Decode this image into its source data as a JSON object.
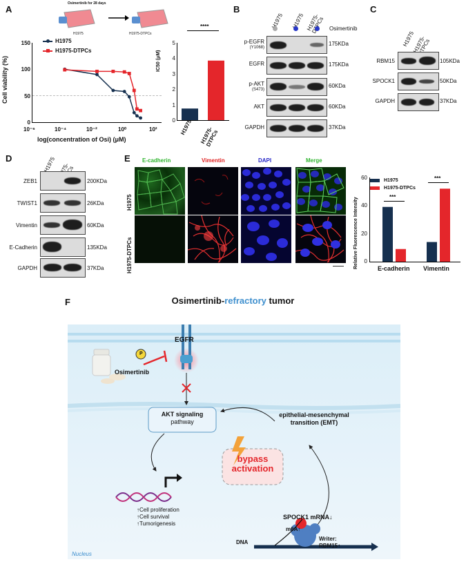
{
  "panels": {
    "A": "A",
    "B": "B",
    "C": "C",
    "D": "D",
    "E": "E",
    "F": "F"
  },
  "panelA": {
    "header": "Osimertinib for 28 days",
    "flask_left": "H1975",
    "flask_right": "H1975-DTPCs",
    "curve_legend": [
      "H1975",
      "H1975-DTPCs"
    ],
    "curve_ylabel": "Cell viability (%)",
    "curve_xlabel": "log(concentration of Osi) (μM)",
    "curve_yticks": [
      "0",
      "50",
      "100",
      "150"
    ],
    "curve_xticks": [
      "10⁻⁶",
      "10⁻⁴",
      "10⁻²",
      "10⁰",
      "10²"
    ],
    "bar_ylabel": "IC50 (μM)",
    "bar_yticks": [
      "0",
      "1",
      "2",
      "3",
      "4",
      "5"
    ],
    "bar_categories": [
      "H1975",
      "H1975-DTPCs"
    ],
    "bar_sig": "****"
  },
  "panelB": {
    "lanes": [
      "H1975",
      "H1975",
      "H1975-DTPCs"
    ],
    "treatment": "Osimertinib",
    "rows": [
      {
        "label": "p-EGFR",
        "sub": "(Y1068)",
        "kda": "175KDa"
      },
      {
        "label": "EGFR",
        "sub": "",
        "kda": "175KDa"
      },
      {
        "label": "p-AKT",
        "sub": "(S473)",
        "kda": "60KDa"
      },
      {
        "label": "AKT",
        "sub": "",
        "kda": "60KDa"
      },
      {
        "label": "GAPDH",
        "sub": "",
        "kda": "37KDa"
      }
    ]
  },
  "panelC": {
    "lanes": [
      "H1975",
      "H1975-DTPCs"
    ],
    "rows": [
      {
        "label": "RBM15",
        "kda": "105KDa"
      },
      {
        "label": "SPOCK1",
        "kda": "50KDa"
      },
      {
        "label": "GAPDH",
        "kda": "37KDa"
      }
    ]
  },
  "panelD": {
    "lanes": [
      "H1975",
      "H1975-DTPCs"
    ],
    "rows": [
      {
        "label": "ZEB1",
        "kda": "200KDa"
      },
      {
        "label": "TWIST1",
        "kda": "26KDa"
      },
      {
        "label": "Vimentin",
        "kda": "60KDa"
      },
      {
        "label": "E-Cadherin",
        "kda": "135KDa"
      },
      {
        "label": "GAPDH",
        "kda": "37KDa"
      }
    ]
  },
  "panelE": {
    "columns": [
      "E-cadherin",
      "Vimentin",
      "DAPI",
      "Merge"
    ],
    "column_colors": [
      "#2fb52f",
      "#e02020",
      "#2525c8",
      "#2fb52f"
    ],
    "rows": [
      "H1975",
      "H1975-DTPCs"
    ],
    "bar_legend": [
      "H1975",
      "H1975-DTPCs"
    ],
    "bar_ylabel": "Relative Fluorescence Intensity",
    "bar_yticks": [
      "0",
      "20",
      "40",
      "60"
    ],
    "bar_categories": [
      "E-cadherin",
      "Vimentin"
    ],
    "sig": [
      "***",
      "***"
    ]
  },
  "panelF": {
    "title_pre": "Osimertinib-",
    "title_mid": "refractory",
    "title_post": " tumor",
    "egfr": "EGFR",
    "p": "P",
    "drug": "Osimertinib",
    "akt_line1": "AKT signaling",
    "akt_line2": "pathway",
    "emt_line1": "epithelial-mesenchymal",
    "emt_line2": "transition (EMT)",
    "bypass_line1": "bypass",
    "bypass_line2": "activation",
    "outcomes": [
      "↑Cell proliferation",
      "↑Cell survival",
      "↑Tumorigenesis"
    ],
    "spock": "SPOCK1 mRNA↓",
    "m6a": "m6A↑",
    "writer_line1": "Writer:",
    "writer_line2": "RBM15↑",
    "dna": "DNA",
    "nucleus": "Nucleus"
  },
  "colors": {
    "navy": "#16304f",
    "red": "#e4262b",
    "blue": "#3e8fce"
  },
  "chart_data": [
    {
      "type": "line",
      "title": "",
      "xlabel": "log(concentration of Osi) (μM)",
      "ylabel": "Cell viability (%)",
      "xscale": "log",
      "xlim": [
        1e-06,
        100
      ],
      "ylim": [
        0,
        150
      ],
      "series": [
        {
          "name": "H1975",
          "x": [
            0.0001,
            0.01,
            0.1,
            0.5,
            1,
            2,
            3,
            5
          ],
          "y": [
            100,
            90,
            60,
            58,
            48,
            18,
            12,
            8
          ]
        },
        {
          "name": "H1975-DTPCs",
          "x": [
            0.0001,
            0.01,
            0.1,
            0.5,
            1,
            2,
            3,
            5
          ],
          "y": [
            99,
            96,
            96,
            95,
            92,
            60,
            25,
            22
          ]
        }
      ]
    },
    {
      "type": "bar",
      "title": "",
      "categories": [
        "H1975",
        "H1975-DTPCs"
      ],
      "values": [
        0.75,
        3.85
      ],
      "ylabel": "IC50 (μM)",
      "ylim": [
        0,
        5
      ]
    },
    {
      "type": "bar",
      "title": "",
      "categories": [
        "E-cadherin",
        "Vimentin"
      ],
      "series": [
        {
          "name": "H1975",
          "values": [
            39,
            14
          ]
        },
        {
          "name": "H1975-DTPCs",
          "values": [
            9,
            52
          ]
        }
      ],
      "ylabel": "Relative Fluorescence Intensity",
      "ylim": [
        0,
        60
      ]
    }
  ]
}
